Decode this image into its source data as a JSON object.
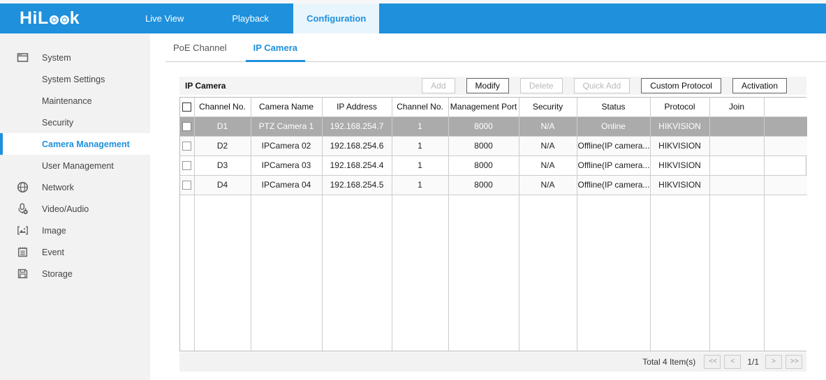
{
  "topbar": {
    "logo": {
      "left": "HiL",
      "right": "k"
    },
    "nav": [
      {
        "label": "Live View",
        "active": false
      },
      {
        "label": "Playback",
        "active": false
      },
      {
        "label": "Configuration",
        "active": true
      }
    ]
  },
  "sidebar": {
    "items": [
      {
        "label": "System",
        "icon": "system-icon",
        "active": false
      },
      {
        "label": "System Settings",
        "icon": null,
        "active": false
      },
      {
        "label": "Maintenance",
        "icon": null,
        "active": false
      },
      {
        "label": "Security",
        "icon": null,
        "active": false
      },
      {
        "label": "Camera Management",
        "icon": null,
        "active": true
      },
      {
        "label": "User Management",
        "icon": null,
        "active": false
      },
      {
        "label": "Network",
        "icon": "network-icon",
        "active": false
      },
      {
        "label": "Video/Audio",
        "icon": "video-audio-icon",
        "active": false
      },
      {
        "label": "Image",
        "icon": "image-icon",
        "active": false
      },
      {
        "label": "Event",
        "icon": "event-icon",
        "active": false
      },
      {
        "label": "Storage",
        "icon": "storage-icon",
        "active": false
      }
    ]
  },
  "tabs": [
    {
      "label": "PoE Channel",
      "active": false
    },
    {
      "label": "IP Camera",
      "active": true
    }
  ],
  "toolbar": {
    "title": "IP Camera",
    "buttons": [
      {
        "label": "Add",
        "enabled": false
      },
      {
        "label": "Modify",
        "enabled": true
      },
      {
        "label": "Delete",
        "enabled": false
      },
      {
        "label": "Quick Add",
        "enabled": false
      },
      {
        "label": "Custom Protocol",
        "enabled": true
      },
      {
        "label": "Activation",
        "enabled": true
      }
    ]
  },
  "table": {
    "columns": [
      "",
      "Channel No.",
      "Camera Name",
      "IP Address",
      "Channel No.",
      "Management Port",
      "Security",
      "Status",
      "Protocol",
      "Join",
      ""
    ],
    "rows": [
      {
        "selected": true,
        "checked": false,
        "cells": [
          "D1",
          "PTZ Camera 1",
          "192.168.254.7",
          "1",
          "8000",
          "N/A",
          "Online",
          "HIKVISION",
          "",
          ""
        ]
      },
      {
        "selected": false,
        "checked": false,
        "cells": [
          "D2",
          "IPCamera 02",
          "192.168.254.6",
          "1",
          "8000",
          "N/A",
          "Offline(IP camera...",
          "HIKVISION",
          "",
          ""
        ]
      },
      {
        "selected": false,
        "checked": false,
        "cells": [
          "D3",
          "IPCamera 03",
          "192.168.254.4",
          "1",
          "8000",
          "N/A",
          "Offline(IP camera...",
          "HIKVISION",
          "",
          ""
        ]
      },
      {
        "selected": false,
        "checked": false,
        "cells": [
          "D4",
          "IPCamera 04",
          "192.168.254.5",
          "1",
          "8000",
          "N/A",
          "Offline(IP camera...",
          "HIKVISION",
          "",
          ""
        ]
      }
    ]
  },
  "footer": {
    "total": "Total 4 Item(s)",
    "pager": {
      "first": "<<",
      "prev": "<",
      "page": "1/1",
      "next": ">",
      "last": ">>"
    }
  },
  "colors": {
    "brand_blue": "#1e90dc",
    "active_nav_bg": "#e9f5fc",
    "selected_row_bg": "#ababab",
    "sidebar_bg": "#f2f2f2"
  }
}
